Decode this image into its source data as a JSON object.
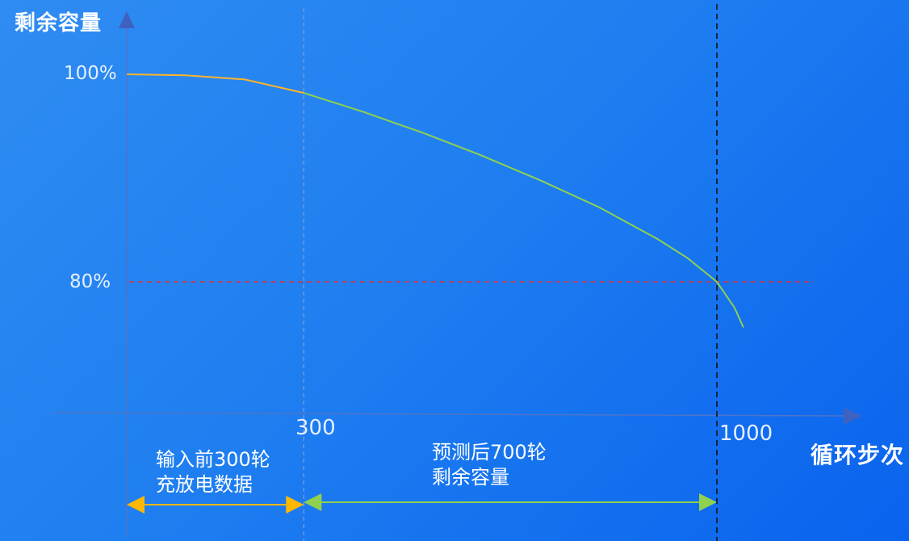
{
  "chart_data": {
    "type": "line",
    "ylabel": "剩余容量",
    "xlabel": "循环步次",
    "x_ticks": [
      {
        "value": 300,
        "label": "300"
      },
      {
        "value": 1000,
        "label": "1000"
      }
    ],
    "y_ticks": [
      {
        "value": 100,
        "label": "100%"
      },
      {
        "value": 80,
        "label": "80%"
      }
    ],
    "xlim": [
      0,
      1050
    ],
    "ylim": [
      74,
      100
    ],
    "series": [
      {
        "x": [
          0,
          100,
          200,
          300,
          400,
          500,
          600,
          700,
          800,
          900,
          950,
          1000,
          1030,
          1045
        ],
        "y": [
          100,
          99.9,
          99.5,
          98.2,
          96.4,
          94.4,
          92.2,
          89.8,
          87.2,
          84.1,
          82.3,
          80.0,
          77.5,
          75.6
        ],
        "colors": {
          "input_segment": "#ffb42a",
          "predict_segment": "#8fd14f"
        }
      }
    ],
    "threshold_y": 80,
    "threshold_color": "#e0303a",
    "markers_x": [
      300,
      1000
    ],
    "annotations": {
      "input": {
        "line1": "输入前300轮",
        "line2": "充放电数据",
        "from": 0,
        "to": 300,
        "color": "#ffb800"
      },
      "predict": {
        "line1": "预测后700轮",
        "line2": "剩余容量",
        "from": 300,
        "to": 1000,
        "color": "#8fd14f"
      }
    },
    "grid": false,
    "legend": "none"
  }
}
